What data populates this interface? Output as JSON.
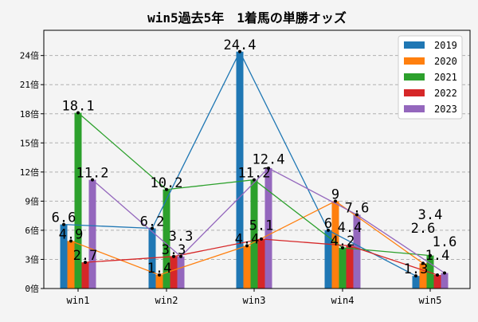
{
  "chart_data": {
    "type": "bar",
    "title": "win5過去5年　1着馬の単勝オッズ",
    "xlabel": "",
    "ylabel": "",
    "categories": [
      "win1",
      "win2",
      "win3",
      "win4",
      "win5"
    ],
    "ylim": [
      0,
      26.6
    ],
    "yticks": [
      0,
      3,
      6,
      9,
      12,
      15,
      18,
      21,
      24
    ],
    "ytick_labels": [
      "0倍",
      "3倍",
      "6倍",
      "9倍",
      "12倍",
      "15倍",
      "18倍",
      "21倍",
      "24倍"
    ],
    "grid": "horizontal dashed",
    "legend_position": "top-right",
    "overlay": "line connecting each series' bar tops with value labels",
    "series": [
      {
        "name": "2019",
        "color": "#1f77b4",
        "values": [
          6.6,
          6.2,
          24.4,
          6,
          1.3
        ]
      },
      {
        "name": "2020",
        "color": "#ff7f0e",
        "values": [
          4.9,
          1.4,
          4.4,
          9,
          2.6
        ]
      },
      {
        "name": "2021",
        "color": "#2ca02c",
        "values": [
          18.1,
          10.2,
          11.2,
          4.2,
          3.4
        ]
      },
      {
        "name": "2022",
        "color": "#d62728",
        "values": [
          2.7,
          3.3,
          5.1,
          4.4,
          1.4
        ]
      },
      {
        "name": "2023",
        "color": "#9467bd",
        "values": [
          11.2,
          3.3,
          12.4,
          7.6,
          1.6
        ]
      }
    ]
  }
}
